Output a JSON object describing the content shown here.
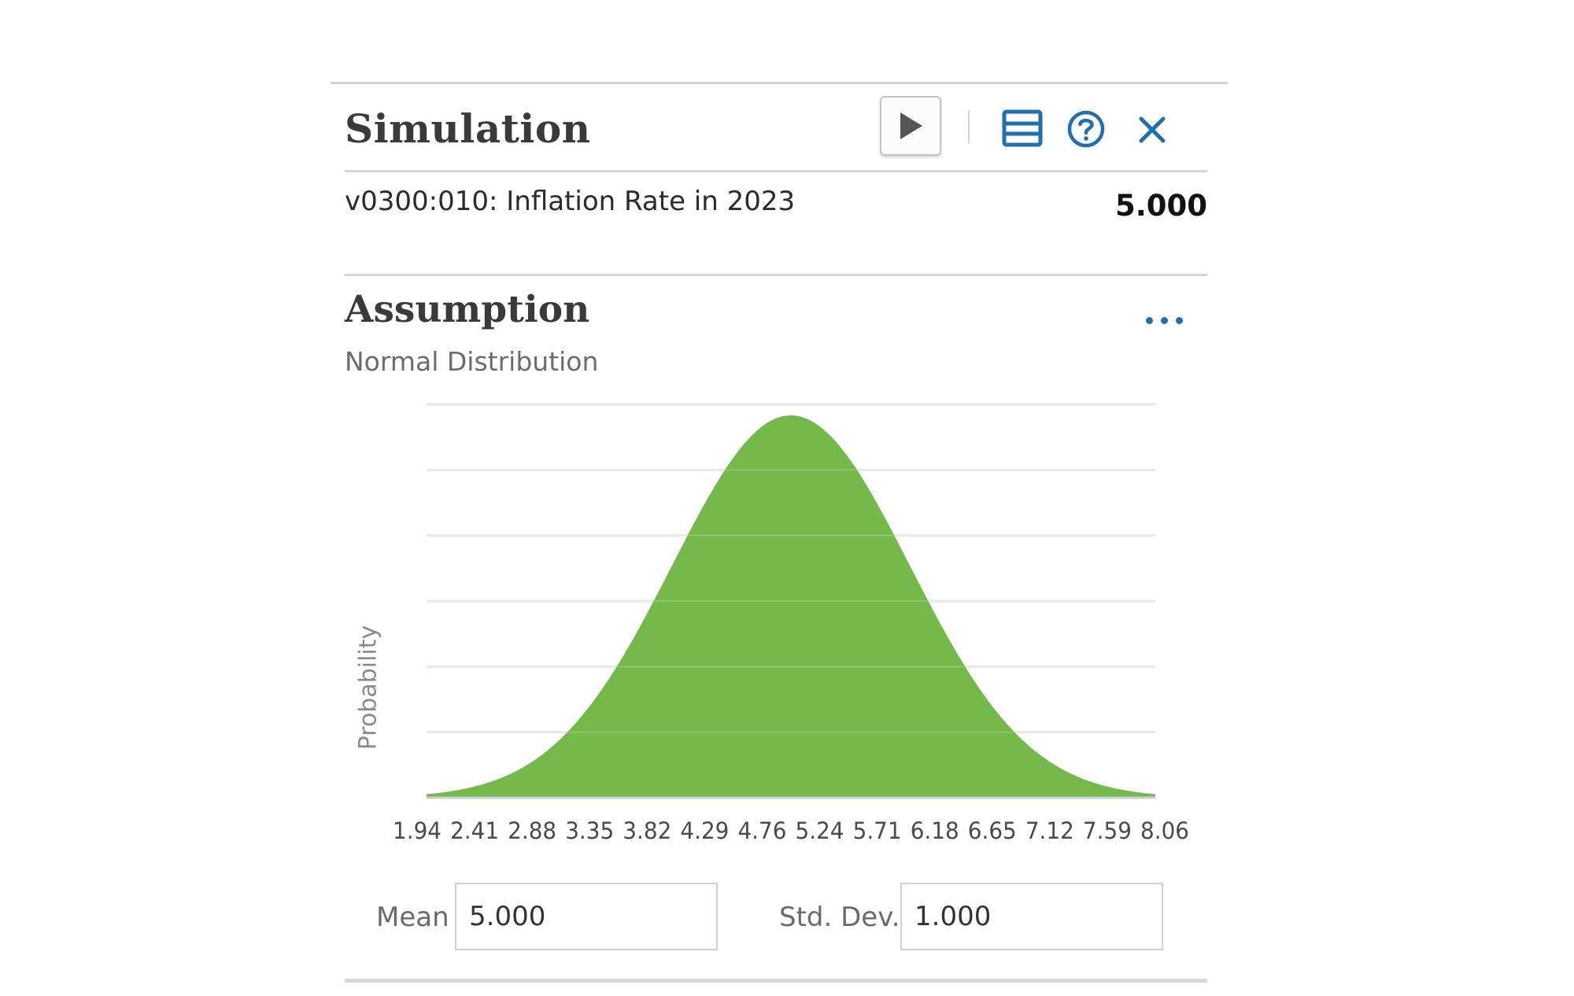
{
  "panel": {
    "title": "Simulation",
    "toolbar": {
      "run_icon": "play-icon",
      "layout_icon": "panel-layout-icon",
      "help_icon": "help-circle-icon",
      "close_icon": "close-icon"
    }
  },
  "variable": {
    "label": "v0300:010: Inflation Rate in 2023",
    "value": "5.000"
  },
  "assumption": {
    "title": "Assumption",
    "subtitle": "Normal Distribution",
    "menu_icon": "more-options-icon"
  },
  "chart_data": {
    "type": "area",
    "distribution": "normal",
    "mean": 5.0,
    "std_dev": 1.0,
    "ylabel": "Probability",
    "xlabel": "",
    "x_ticks": [
      "1.94",
      "2.41",
      "2.88",
      "3.35",
      "3.82",
      "4.29",
      "4.76",
      "5.24",
      "5.71",
      "6.18",
      "6.65",
      "7.12",
      "7.59",
      "8.06"
    ],
    "xlim": [
      1.94,
      8.06
    ],
    "grid": true,
    "fill_color": "#74b94a"
  },
  "params": {
    "mean_label": "Mean",
    "mean_value": "5.000",
    "std_label": "Std. Dev.",
    "std_value": "1.000"
  },
  "colors": {
    "accent": "#1f6fb3",
    "curve_fill": "#74b94a"
  }
}
